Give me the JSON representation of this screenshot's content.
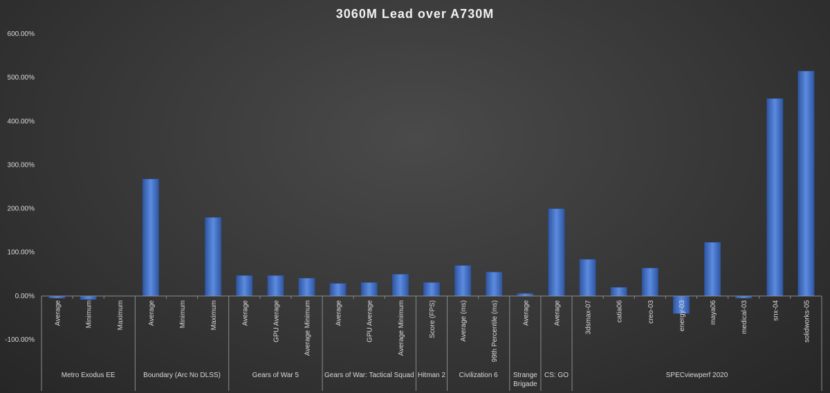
{
  "chart_data": {
    "type": "bar",
    "title": "3060M Lead over A730M",
    "ylim": [
      -100,
      600
    ],
    "yticks": [
      "-100.00%",
      "0.00%",
      "100.00%",
      "200.00%",
      "300.00%",
      "400.00%",
      "500.00%",
      "600.00%"
    ],
    "ytick_values": [
      -100,
      0,
      100,
      200,
      300,
      400,
      500,
      600
    ],
    "grid": false,
    "colors": {
      "bar": "#4472c4",
      "bar_light": "#5b8be0",
      "bar_dark": "#2f55a0",
      "axis": "#8c8c8c"
    },
    "groups": [
      {
        "name": "Metro Exodus EE",
        "categories": [
          "Average",
          "Minimum",
          "Maximum"
        ],
        "values": [
          -5,
          -8,
          0
        ]
      },
      {
        "name": "Boundary (Arc No DLSS)",
        "categories": [
          "Average",
          "Minimum",
          "Maximum"
        ],
        "values": [
          268,
          0,
          180
        ]
      },
      {
        "name": "Gears of War 5",
        "categories": [
          "Average",
          "GPU Average",
          "Average Minimum"
        ],
        "values": [
          47,
          47,
          41
        ]
      },
      {
        "name": "Gears of War: Tactical Squad",
        "categories": [
          "Average",
          "GPU Average",
          "Average Minimum"
        ],
        "values": [
          29,
          31,
          50
        ]
      },
      {
        "name": "Hitman 2",
        "categories": [
          "Score (FPS)"
        ],
        "values": [
          31
        ]
      },
      {
        "name": "Civilization 6",
        "categories": [
          "Average (ms)",
          "99th Percentile (ms)"
        ],
        "values": [
          70,
          55
        ]
      },
      {
        "name": "Strange Brigade",
        "lines": [
          "Strange",
          "Brigade"
        ],
        "categories": [
          "Average"
        ],
        "values": [
          6
        ]
      },
      {
        "name": "CS: GO",
        "categories": [
          "Average"
        ],
        "values": [
          200
        ]
      },
      {
        "name": "SPECviewperf 2020",
        "categories": [
          "3dsmax-07",
          "catia06",
          "creo-03",
          "energy-03",
          "maya06",
          "medical-03",
          "snx-04",
          "solidworks-05"
        ],
        "values": [
          84,
          20,
          64,
          -40,
          123,
          -5,
          452,
          515
        ]
      }
    ]
  }
}
